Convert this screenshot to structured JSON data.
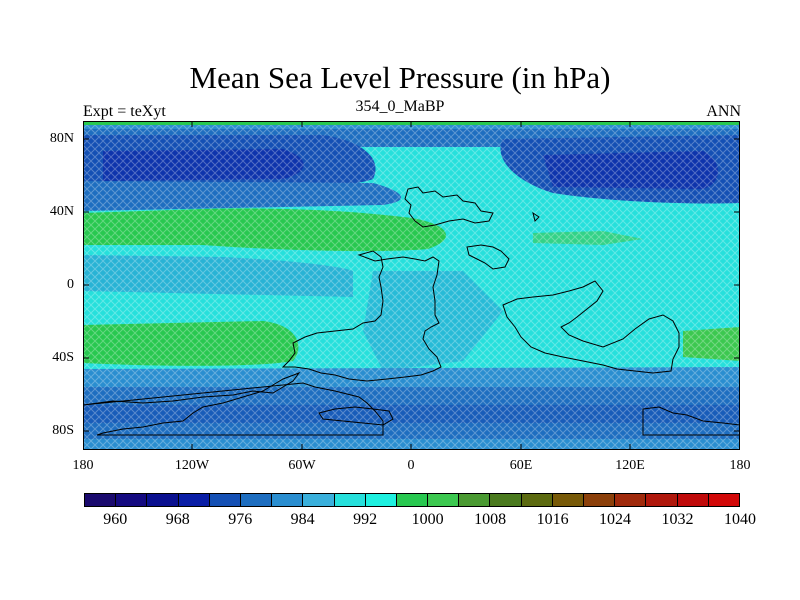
{
  "title": "Mean Sea Level Pressure (in hPa)",
  "subtitle_left": "Expt = teXyt",
  "subtitle_center": "354_0_MaBP",
  "subtitle_right": "ANN",
  "axes": {
    "lat_labels": [
      "80N",
      "40N",
      "0",
      "40S",
      "80S"
    ],
    "lon_labels": [
      "180",
      "120W",
      "60W",
      "0",
      "60E",
      "120E",
      "180"
    ]
  },
  "colorbar": {
    "colors": [
      "#1a0a6e",
      "#140a80",
      "#0a108f",
      "#0a1ea6",
      "#1450b4",
      "#1e6ec0",
      "#2a8ed0",
      "#3ab0dc",
      "#26e0dc",
      "#1ef0e0",
      "#28c850",
      "#3cc850",
      "#4a9a32",
      "#4a7a1e",
      "#5c6a10",
      "#785a08",
      "#8c400a",
      "#a02a0c",
      "#b0180c",
      "#c00a0a",
      "#d20808"
    ],
    "labels": [
      "960",
      "968",
      "976",
      "984",
      "992",
      "1000",
      "1008",
      "1016",
      "1024",
      "1032",
      "1040"
    ]
  },
  "map_colors": {
    "deep_low": "#1450b4",
    "low": "#1e6ec0",
    "mid": "#2a8ed0",
    "high": "#26e0dc",
    "very_high": "#28c850",
    "frame_top": "#28c850"
  }
}
